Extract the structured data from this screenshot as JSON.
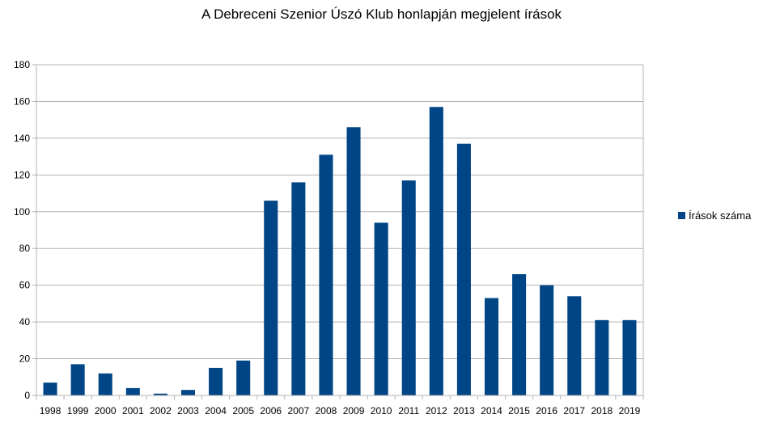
{
  "chart_data": {
    "type": "bar",
    "title": "A Debreceni Szenior Úszó Klub honlapján megjelent írások",
    "xlabel": "",
    "ylabel": "",
    "ylim": [
      0,
      180
    ],
    "yticks": [
      0,
      20,
      40,
      60,
      80,
      100,
      120,
      140,
      160,
      180
    ],
    "grid": true,
    "legend_position": "right",
    "bar_color": "#004586",
    "grid_color": "#b3b3b3",
    "categories": [
      "1998",
      "1999",
      "2000",
      "2001",
      "2002",
      "2003",
      "2004",
      "2005",
      "2006",
      "2007",
      "2008",
      "2009",
      "2010",
      "2011",
      "2012",
      "2013",
      "2014",
      "2015",
      "2016",
      "2017",
      "2018",
      "2019"
    ],
    "series": [
      {
        "name": "Írások száma",
        "values": [
          7,
          17,
          12,
          4,
          1,
          3,
          15,
          19,
          106,
          116,
          131,
          146,
          94,
          117,
          157,
          137,
          53,
          66,
          60,
          54,
          41,
          41
        ]
      }
    ]
  }
}
